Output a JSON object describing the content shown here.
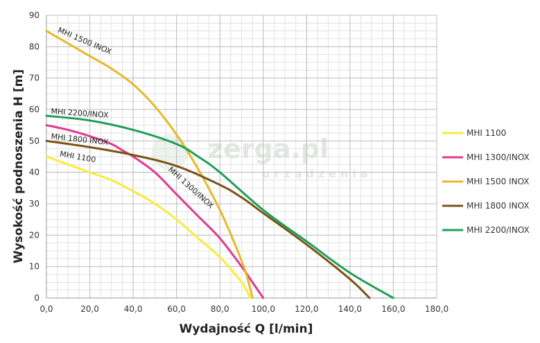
{
  "chart_data": {
    "type": "line",
    "xlabel": "Wydajność Q [l/min]",
    "ylabel": "Wysokość podnoszenia H [m]",
    "xlim": [
      0,
      180
    ],
    "ylim": [
      0,
      90
    ],
    "x_ticks": [
      "0,0",
      "20,0",
      "40,0",
      "60,0",
      "80,0",
      "100,0",
      "120,0",
      "140,0",
      "160,0",
      "180,0"
    ],
    "y_ticks": [
      "0",
      "10",
      "20",
      "30",
      "40",
      "50",
      "60",
      "70",
      "80",
      "90"
    ],
    "grid": true,
    "minor_grid": true,
    "legend_position": "right",
    "series": [
      {
        "name": "MHI 1100",
        "color": "#f5ee3a",
        "curve_label": "MHI 1100",
        "points": [
          [
            0,
            45
          ],
          [
            10,
            42.5
          ],
          [
            20,
            40
          ],
          [
            30,
            37.5
          ],
          [
            40,
            34
          ],
          [
            50,
            30
          ],
          [
            60,
            25
          ],
          [
            70,
            19
          ],
          [
            80,
            13
          ],
          [
            90,
            5
          ],
          [
            94,
            0
          ]
        ]
      },
      {
        "name": "MHI 1300/INOX",
        "color": "#e0398f",
        "curve_label": "MHI 1300/INOX",
        "points": [
          [
            0,
            55
          ],
          [
            10,
            53.5
          ],
          [
            20,
            51.5
          ],
          [
            30,
            49
          ],
          [
            35,
            47
          ],
          [
            40,
            45
          ],
          [
            50,
            40
          ],
          [
            60,
            33
          ],
          [
            70,
            26
          ],
          [
            80,
            19
          ],
          [
            90,
            10
          ],
          [
            95,
            5
          ],
          [
            99,
            1
          ],
          [
            100,
            0
          ]
        ]
      },
      {
        "name": "MHI 1500 INOX",
        "color": "#e8b829",
        "curve_label": "MHI 1500 INOX",
        "points": [
          [
            0,
            85
          ],
          [
            10,
            81
          ],
          [
            20,
            77
          ],
          [
            30,
            73
          ],
          [
            40,
            68
          ],
          [
            50,
            61
          ],
          [
            60,
            52
          ],
          [
            70,
            41
          ],
          [
            80,
            28
          ],
          [
            87,
            17
          ],
          [
            92,
            8
          ],
          [
            95,
            0
          ]
        ]
      },
      {
        "name": "MHI 1800 INOX",
        "color": "#7a5214",
        "curve_label": "MHI 1800 INOX",
        "points": [
          [
            0,
            50
          ],
          [
            20,
            48
          ],
          [
            40,
            45.5
          ],
          [
            60,
            42
          ],
          [
            80,
            36
          ],
          [
            90,
            32
          ],
          [
            100,
            27
          ],
          [
            120,
            17
          ],
          [
            140,
            6
          ],
          [
            149,
            0
          ]
        ]
      },
      {
        "name": "MHI 2200/INOX",
        "color": "#1f9e57",
        "curve_label": "MHI 2200/INOX",
        "points": [
          [
            0,
            58
          ],
          [
            20,
            56.5
          ],
          [
            40,
            53.5
          ],
          [
            60,
            49
          ],
          [
            70,
            45
          ],
          [
            80,
            40
          ],
          [
            100,
            28
          ],
          [
            120,
            18
          ],
          [
            140,
            8
          ],
          [
            160,
            0
          ]
        ]
      }
    ]
  },
  "watermark": {
    "text": "zerga.pl",
    "subtext": "urządzenia"
  }
}
